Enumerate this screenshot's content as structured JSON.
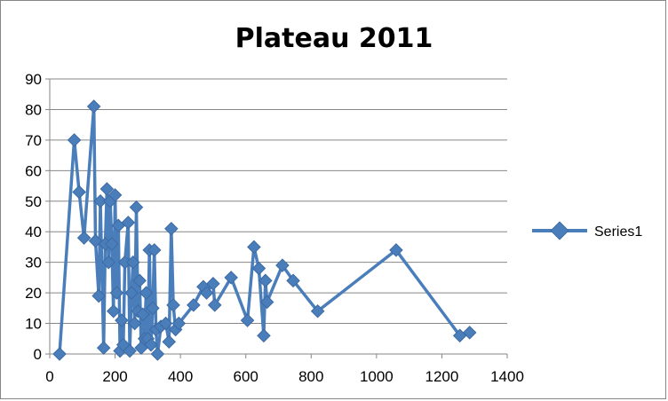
{
  "chart_data": {
    "type": "scatter",
    "title": "Plateau 2011",
    "xlabel": "",
    "ylabel": "",
    "xlim": [
      0,
      1400
    ],
    "ylim": [
      0,
      90
    ],
    "x_ticks": [
      "0",
      "200",
      "400",
      "600",
      "800",
      "1000",
      "1200",
      "1400"
    ],
    "y_ticks": [
      "0",
      "10",
      "20",
      "30",
      "40",
      "50",
      "60",
      "70",
      "80",
      "90"
    ],
    "grid": "horizontal",
    "legend_position": "right",
    "series_color": "#4a7ebb",
    "series": [
      {
        "name": "Series1",
        "mode": "lines+markers",
        "x": [
          30,
          75,
          90,
          105,
          135,
          140,
          150,
          155,
          165,
          170,
          175,
          180,
          185,
          190,
          195,
          200,
          205,
          210,
          215,
          220,
          225,
          230,
          240,
          245,
          250,
          255,
          260,
          265,
          270,
          275,
          280,
          285,
          290,
          295,
          300,
          305,
          310,
          315,
          320,
          325,
          330,
          340,
          355,
          365,
          372,
          378,
          385,
          395,
          440,
          470,
          480,
          500,
          505,
          555,
          605,
          625,
          640,
          655,
          660,
          665,
          712,
          745,
          820,
          1060,
          1255,
          1285
        ],
        "y": [
          0,
          70,
          53,
          38,
          81,
          37,
          19,
          50,
          2,
          36,
          54,
          30,
          50,
          36,
          14,
          52,
          20,
          42,
          1,
          11,
          3,
          30,
          43,
          1,
          20,
          30,
          10,
          48,
          14,
          24,
          2,
          13,
          5,
          20,
          5,
          34,
          3,
          15,
          34,
          8,
          0,
          9,
          10,
          4,
          41,
          16,
          8,
          10,
          16,
          22,
          20,
          23,
          16,
          25,
          11,
          35,
          28,
          6,
          24,
          17,
          29,
          24,
          14,
          34,
          6,
          7
        ]
      }
    ]
  }
}
